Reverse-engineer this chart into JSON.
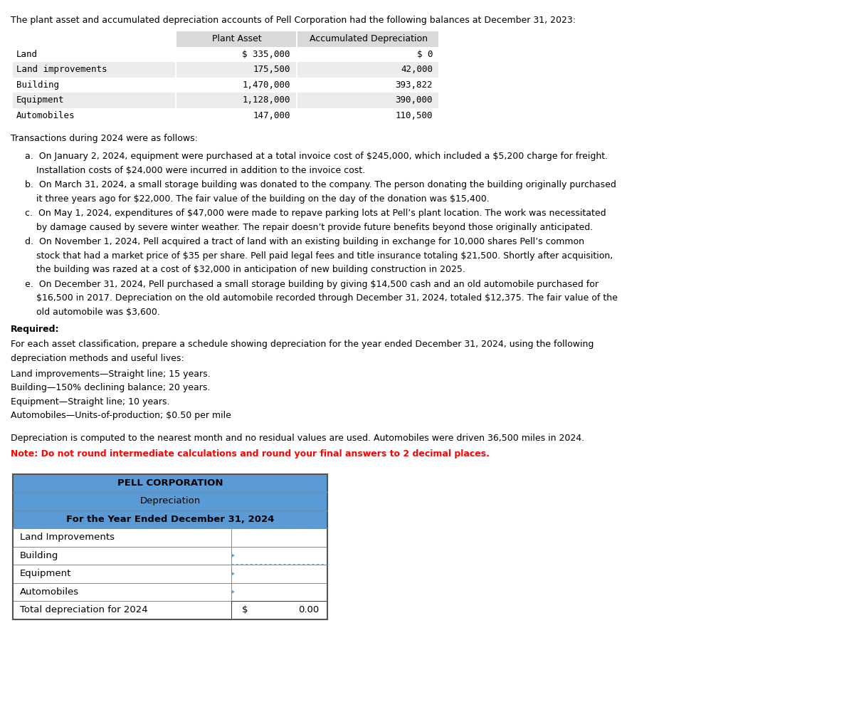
{
  "title_text": "The plant asset and accumulated depreciation accounts of Pell Corporation had the following balances at December 31, 2023:",
  "table1_headers": [
    "",
    "Plant Asset",
    "Accumulated Depreciation"
  ],
  "table1_rows": [
    [
      "Land",
      "$ 335,000",
      "$ 0"
    ],
    [
      "Land improvements",
      "175,500",
      "42,000"
    ],
    [
      "Building",
      "1,470,000",
      "393,822"
    ],
    [
      "Equipment",
      "1,128,000",
      "390,000"
    ],
    [
      "Automobiles",
      "147,000",
      "110,500"
    ]
  ],
  "transactions_title": "Transactions during 2024 were as follows:",
  "trans_a1": "a.  On January 2, 2024, equipment were purchased at a total invoice cost of ",
  "trans_a1b": "245,000, which included a ",
  "trans_a1c": "5,200 charge for freight.",
  "trans_a2": "    Installation costs of ",
  "trans_a2b": "24,000 were incurred in addition to the invoice cost.",
  "trans_b1": "b.  On March 31, 2024, a small storage building was donated to the company. The person donating the building originally purchased",
  "trans_b2": "    it three years ago for ",
  "trans_b2b": "22,000. The fair value of the building on the day of the donation was ",
  "trans_b2c": "15,400.",
  "trans_c1": "c.  On May 1, 2024, expenditures of ",
  "trans_c1b": "47,000 were made to repave parking lots at Pell’s plant location. The work was necessitated",
  "trans_c2": "    by damage caused by severe winter weather. The repair doesn’t provide future benefits beyond those originally anticipated.",
  "trans_d1": "d.  On November 1, 2024, Pell acquired a tract of land with an existing building in exchange for 10,000 shares Pell’s common",
  "trans_d2": "    stock that had a market price of ",
  "trans_d2b": "35 per share. Pell paid legal fees and title insurance totaling ",
  "trans_d2c": "21,500. Shortly after acquisition,",
  "trans_d3": "    the building was razed at a cost of ",
  "trans_d3b": "32,000 in anticipation of new building construction in 2025.",
  "trans_e1": "e.  On December 31, 2024, Pell purchased a small storage building by giving ",
  "trans_e1b": "14,500 cash and an old automobile purchased for",
  "trans_e2": "    ",
  "trans_e2b": "16,500 in 2017. Depreciation on the old automobile recorded through December 31, 2024, totaled ",
  "trans_e2c": "12,375. The fair value of the",
  "trans_e3": "    old automobile was ",
  "trans_e3b": "3,600.",
  "required_title": "Required:",
  "required_text1": "For each asset classification, prepare a schedule showing depreciation for the year ended December 31, 2024, using the following",
  "required_text2": "depreciation methods and useful lives:",
  "methods": [
    "Land improvements—Straight line; 15 years.",
    "Building—150% declining balance; 20 years.",
    "Equipment—Straight line; 10 years.",
    "Automobiles—Units-of-production; $0.50 per mile"
  ],
  "note_plain": "Depreciation is computed to the nearest month and no residual values are used. Automobiles were driven 36,500 miles in 2024.",
  "note_bold_red": "Note: Do not round intermediate calculations and round your final answers to 2 decimal places.",
  "corp_title": "PELL CORPORATION",
  "corp_subtitle": "Depreciation",
  "corp_period": "For the Year Ended December 31, 2024",
  "dep_rows": [
    "Land Improvements",
    "Building",
    "Equipment",
    "Automobiles"
  ],
  "total_label": "Total depreciation for 2024",
  "total_symbol": "$",
  "total_value": "0.00",
  "header_bg": "#5B9BD5",
  "header_text": "#000000",
  "table1_header_bg": "#D9D9D9"
}
